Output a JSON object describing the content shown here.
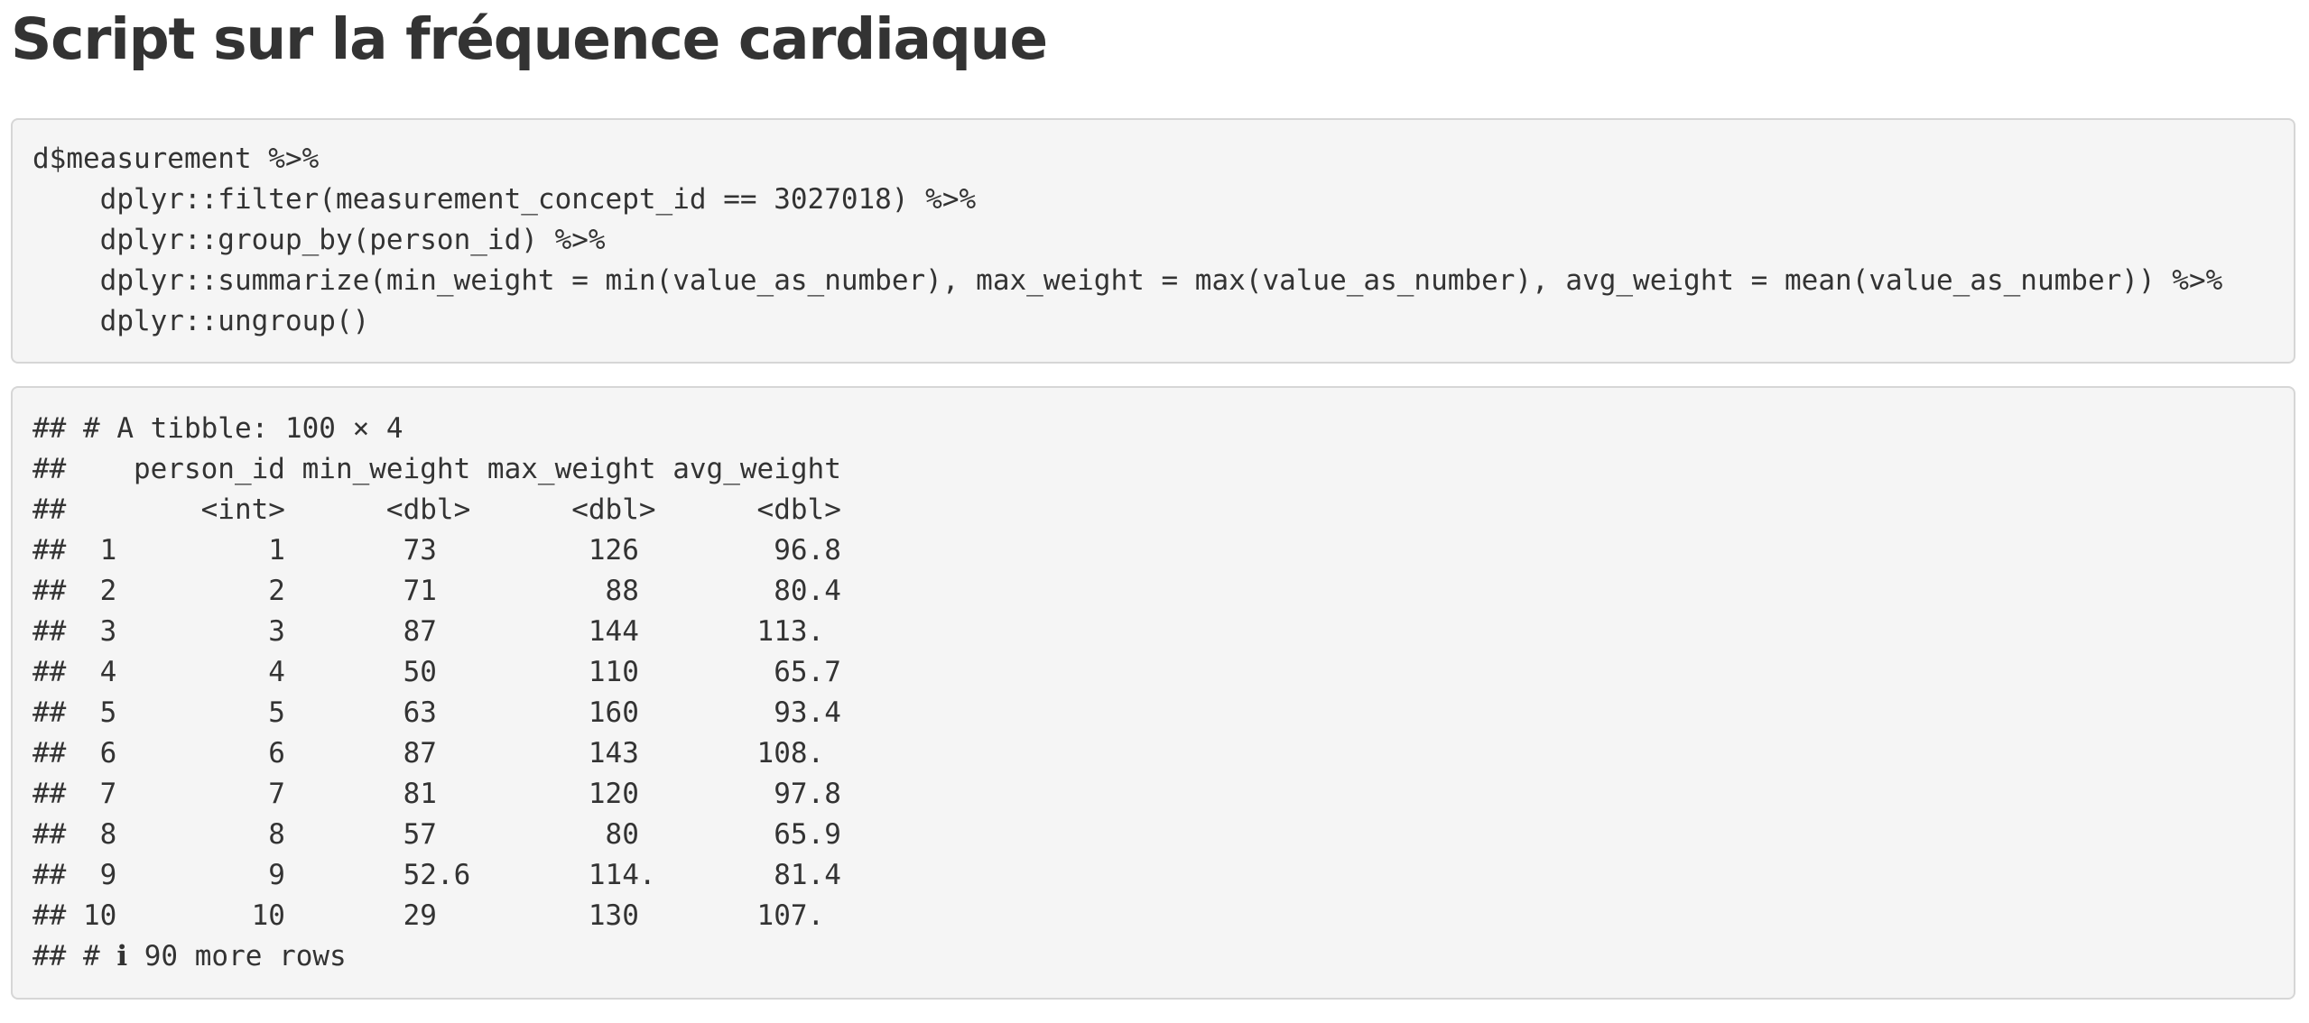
{
  "page": {
    "title": "Script sur la fréquence cardiaque"
  },
  "source_code": {
    "lines": [
      "d$measurement %>%",
      "    dplyr::filter(measurement_concept_id == 3027018) %>%",
      "    dplyr::group_by(person_id) %>%",
      "    dplyr::summarize(min_weight = min(value_as_number), max_weight = max(value_as_number), avg_weight = mean(value_as_number)) %>%",
      "    dplyr::ungroup()"
    ]
  },
  "output": {
    "lines": [
      "## # A tibble: 100 × 4",
      "##    person_id min_weight max_weight avg_weight",
      "##        <int>      <dbl>      <dbl>      <dbl>",
      "##  1         1       73         126        96.8",
      "##  2         2       71          88        80.4",
      "##  3         3       87         144       113.",
      "##  4         4       50         110        65.7",
      "##  5         5       63         160        93.4",
      "##  6         6       87         143       108.",
      "##  7         7       81         120        97.8",
      "##  8         8       57          80        65.9",
      "##  9         9       52.6       114.       81.4",
      "## 10        10       29         130       107.",
      "## # ℹ 90 more rows"
    ]
  }
}
